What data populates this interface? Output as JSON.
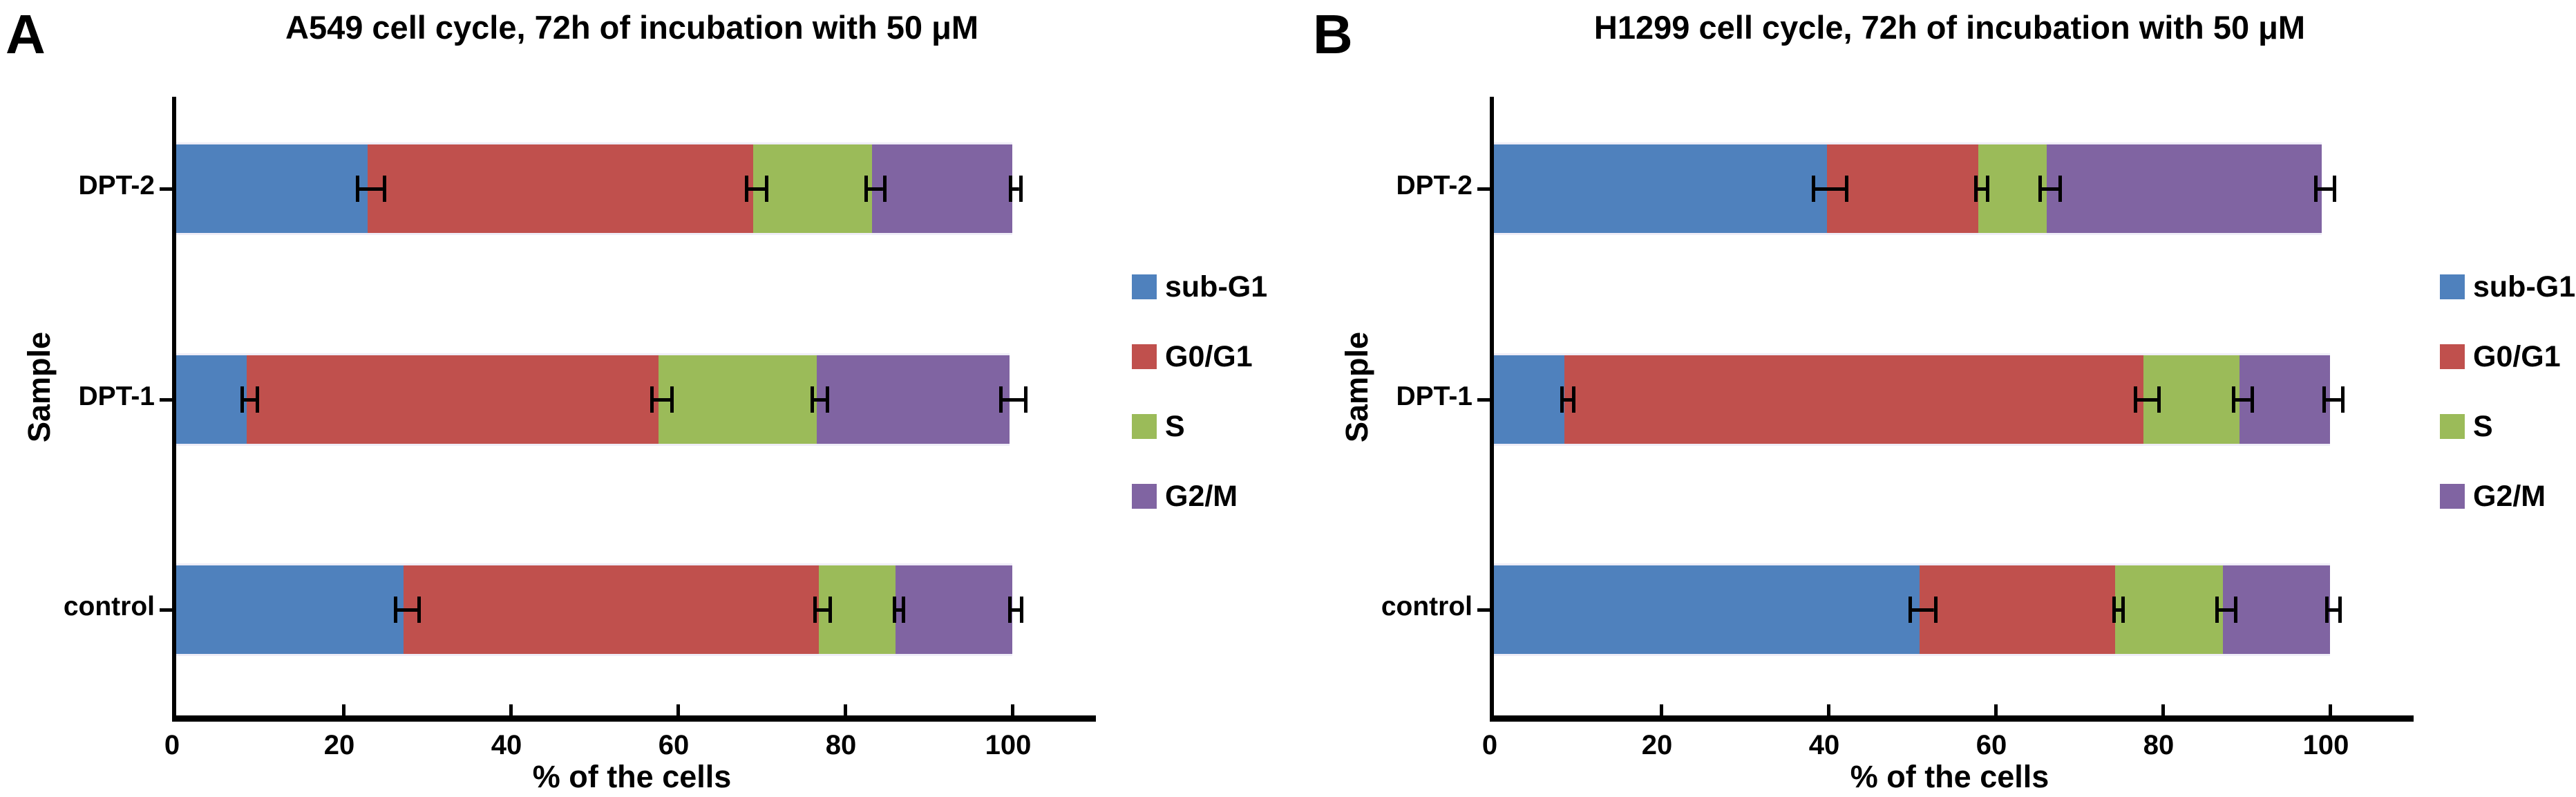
{
  "chart_data": [
    {
      "type": "bar",
      "orientation": "horizontal",
      "stacked": true,
      "panel_label": "A",
      "title": "A549 cell cycle, 72h of incubation with 50 μM",
      "xlabel": "% of the cells",
      "ylabel": "Sample",
      "xlim": [
        0,
        110
      ],
      "x_ticks": [
        0,
        20,
        40,
        60,
        80,
        100
      ],
      "grid": false,
      "legend_position": "right",
      "categories_top_to_bottom": [
        "DPT-2",
        "DPT-1",
        "control"
      ],
      "series": [
        {
          "name": "sub-G1",
          "color": "#4F81BD",
          "values": [
            22.9,
            8.4,
            27.2
          ],
          "error_bars": [
            1.4,
            0.7,
            1.2
          ]
        },
        {
          "name": "G0/G1",
          "color": "#C0504D",
          "values": [
            46.1,
            49.3,
            49.7
          ],
          "error_bars": [
            1.0,
            1.0,
            0.7
          ]
        },
        {
          "name": "S",
          "color": "#9BBB59",
          "values": [
            14.2,
            18.9,
            9.1
          ],
          "error_bars": [
            0.9,
            0.7,
            0.3
          ]
        },
        {
          "name": "G2/M",
          "color": "#8064A2",
          "values": [
            16.8,
            23.1,
            14.0
          ],
          "error_bars": [
            0.4,
            1.3,
            0.5
          ]
        }
      ]
    },
    {
      "type": "bar",
      "orientation": "horizontal",
      "stacked": true,
      "panel_label": "B",
      "title": "H1299 cell cycle, 72h of incubation with 50 μM",
      "xlabel": "% of the cells",
      "ylabel": "Sample",
      "xlim": [
        0,
        110
      ],
      "x_ticks": [
        0,
        20,
        40,
        60,
        80,
        100
      ],
      "grid": false,
      "legend_position": "right",
      "categories_top_to_bottom": [
        "DPT-2",
        "DPT-1",
        "control"
      ],
      "series": [
        {
          "name": "sub-G1",
          "color": "#4F81BD",
          "values": [
            39.8,
            8.4,
            50.9
          ],
          "error_bars": [
            1.8,
            0.5,
            1.3
          ]
        },
        {
          "name": "G0/G1",
          "color": "#C0504D",
          "values": [
            18.1,
            69.3,
            23.4
          ],
          "error_bars": [
            0.5,
            1.2,
            0.3
          ]
        },
        {
          "name": "S",
          "color": "#9BBB59",
          "values": [
            8.2,
            11.5,
            12.9
          ],
          "error_bars": [
            1.0,
            0.9,
            0.9
          ]
        },
        {
          "name": "G2/M",
          "color": "#8064A2",
          "values": [
            32.9,
            10.8,
            12.8
          ],
          "error_bars": [
            0.9,
            0.9,
            0.6
          ]
        }
      ]
    }
  ],
  "legend_labels": [
    "sub-G1",
    "G0/G1",
    "S",
    "G2/M"
  ],
  "colors": {
    "sub_g1": "#4F81BD",
    "g0_g1": "#C0504D",
    "s": "#9BBB59",
    "g2_m": "#8064A2",
    "axis": "#000000",
    "background": "#FFFFFF"
  }
}
